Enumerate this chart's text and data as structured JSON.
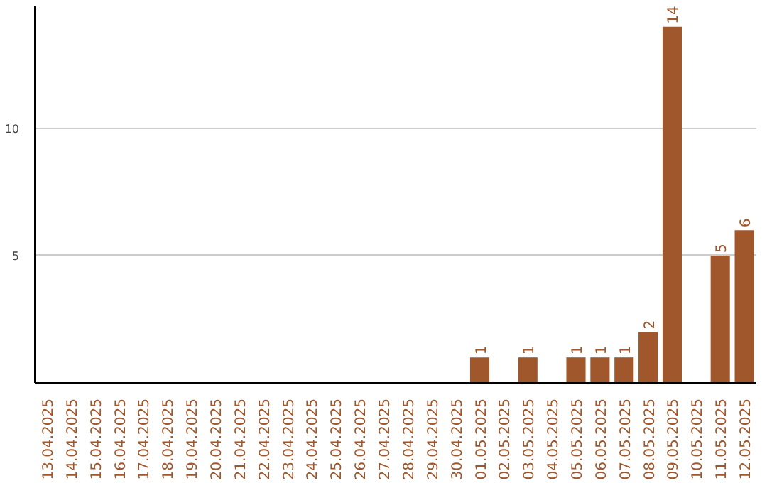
{
  "chart_data": {
    "type": "bar",
    "categories": [
      "13.04.2025",
      "14.04.2025",
      "15.04.2025",
      "16.04.2025",
      "17.04.2025",
      "18.04.2025",
      "19.04.2025",
      "20.04.2025",
      "21.04.2025",
      "22.04.2025",
      "23.04.2025",
      "24.04.2025",
      "25.04.2025",
      "26.04.2025",
      "27.04.2025",
      "28.04.2025",
      "29.04.2025",
      "30.04.2025",
      "01.05.2025",
      "02.05.2025",
      "03.05.2025",
      "04.05.2025",
      "05.05.2025",
      "06.05.2025",
      "07.05.2025",
      "08.05.2025",
      "09.05.2025",
      "10.05.2025",
      "11.05.2025",
      "12.05.2025"
    ],
    "values": [
      0,
      0,
      0,
      0,
      0,
      0,
      0,
      0,
      0,
      0,
      0,
      0,
      0,
      0,
      0,
      0,
      0,
      0,
      1,
      0,
      1,
      0,
      1,
      1,
      1,
      2,
      14,
      0,
      5,
      6
    ],
    "value_labels": [
      null,
      null,
      null,
      null,
      null,
      null,
      null,
      null,
      null,
      null,
      null,
      null,
      null,
      null,
      null,
      null,
      null,
      null,
      "1",
      null,
      "1",
      null,
      "1",
      "1",
      "1",
      "2",
      "14",
      null,
      "5",
      "6"
    ],
    "color": "#a0572b",
    "ylim": [
      0,
      14.8
    ],
    "yticks": [
      5,
      10
    ],
    "grid": "y"
  }
}
